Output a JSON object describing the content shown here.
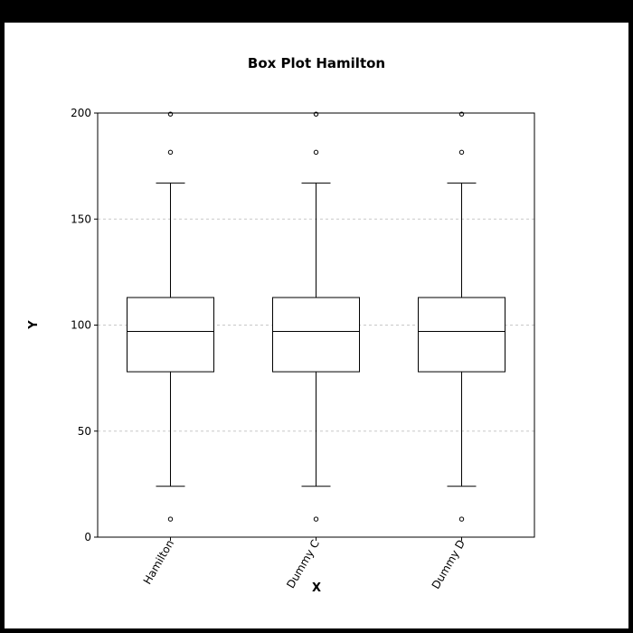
{
  "chart_data": {
    "type": "box",
    "title": "Box Plot Hamilton",
    "xlabel": "X",
    "ylabel": "Y",
    "ylim": [
      0,
      200
    ],
    "yticks": [
      0,
      50,
      100,
      150,
      200
    ],
    "grid": {
      "y": true,
      "x": false
    },
    "categories": [
      "Hamilton",
      "Dummy C",
      "Dummy D"
    ],
    "boxes": [
      {
        "label": "Hamilton",
        "whisker_low": 24,
        "q1": 78,
        "median": 97,
        "q3": 113,
        "whisker_high": 167,
        "outliers": [
          8.5,
          181.5,
          199.5
        ]
      },
      {
        "label": "Dummy C",
        "whisker_low": 24,
        "q1": 78,
        "median": 97,
        "q3": 113,
        "whisker_high": 167,
        "outliers": [
          8.5,
          181.5,
          199.5
        ]
      },
      {
        "label": "Dummy D",
        "whisker_low": 24,
        "q1": 78,
        "median": 97,
        "q3": 113,
        "whisker_high": 167,
        "outliers": [
          8.5,
          181.5,
          199.5
        ]
      }
    ]
  },
  "colors": {
    "background": "#ffffff",
    "frame": "#000000",
    "grid": "#c8c8c8",
    "box_stroke": "#000000"
  }
}
